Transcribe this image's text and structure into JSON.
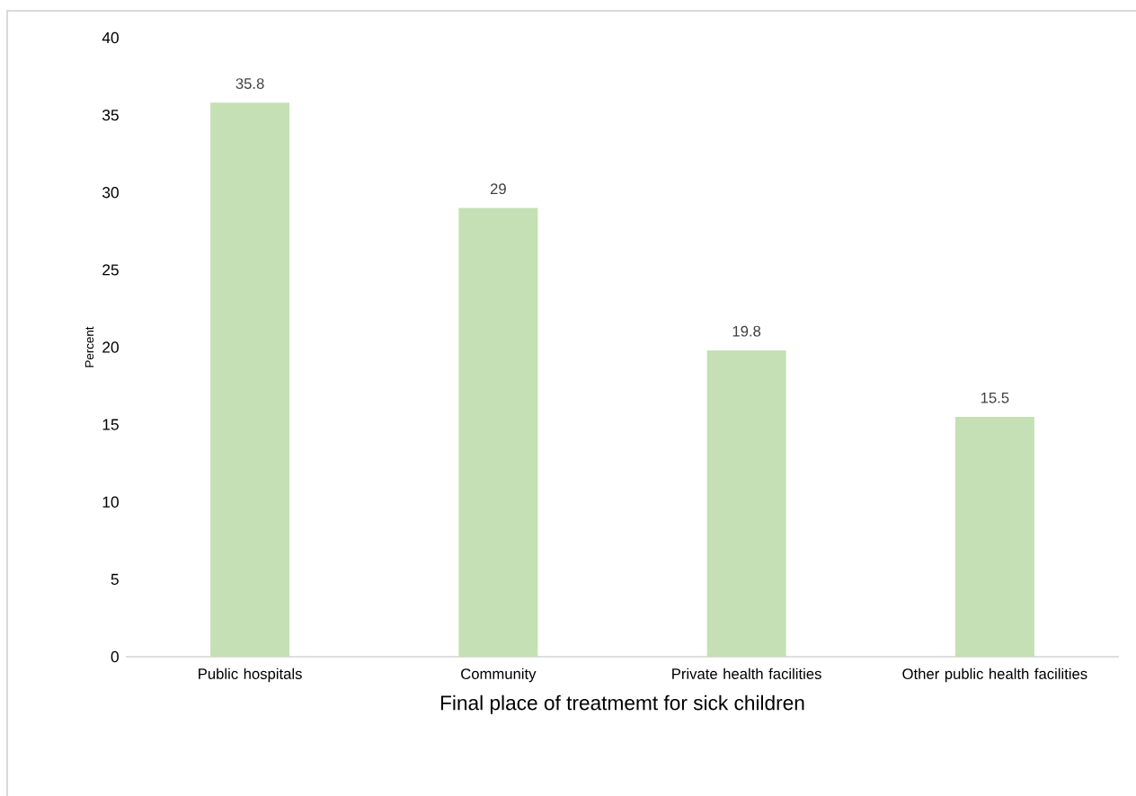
{
  "chart_data": {
    "type": "bar",
    "xlabel": "Final place of treatmemt for sick children",
    "ylabel": "Percent",
    "categories": [
      "Public hospitals",
      "Community",
      "Private health facilities",
      "Other public health facilities"
    ],
    "values": [
      35.8,
      29,
      19.8,
      15.5
    ],
    "color": "#c5e0b4",
    "ylim": [
      0,
      40
    ],
    "yticks": [
      0,
      5,
      10,
      15,
      20,
      25,
      30,
      35,
      40
    ],
    "data_labels": true,
    "grid": false
  }
}
